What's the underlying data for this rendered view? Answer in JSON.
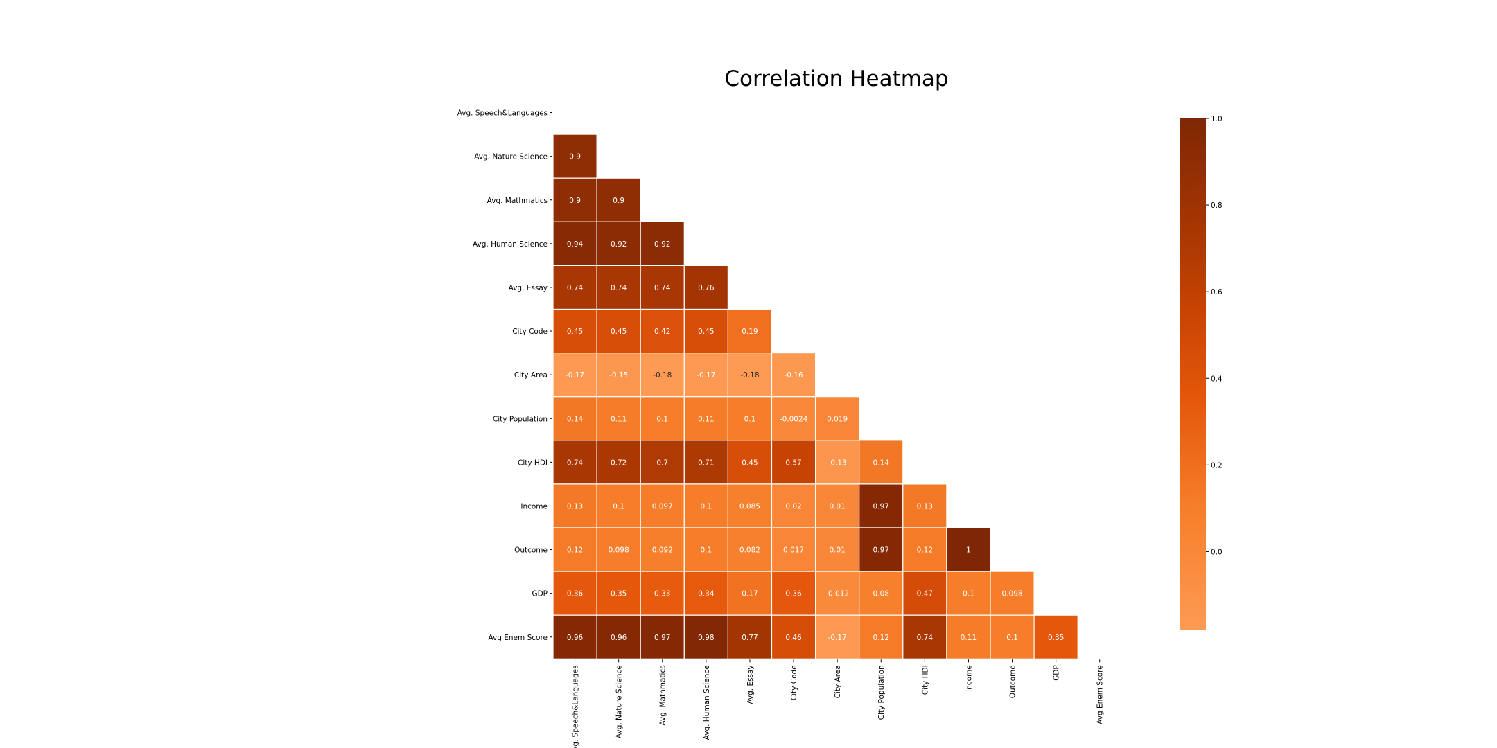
{
  "chart_data": {
    "type": "heatmap",
    "title": "Correlation Heatmap",
    "labels": [
      "Avg. Speech&Languages",
      "Avg. Nature Science",
      "Avg. Mathmatics",
      "Avg. Human Science",
      "Avg. Essay",
      "City Code",
      "City Area",
      "City Population",
      "City HDI",
      "Income",
      "Outcome",
      "GDP",
      "Avg Enem Score"
    ],
    "mask": "upper-triangle-and-diagonal",
    "values": [
      [],
      [
        0.9
      ],
      [
        0.9,
        0.9
      ],
      [
        0.94,
        0.92,
        0.92
      ],
      [
        0.74,
        0.74,
        0.74,
        0.76
      ],
      [
        0.45,
        0.45,
        0.42,
        0.45,
        0.19
      ],
      [
        -0.17,
        -0.15,
        -0.18,
        -0.17,
        -0.18,
        -0.16
      ],
      [
        0.14,
        0.11,
        0.1,
        0.11,
        0.1,
        -0.0024,
        0.019
      ],
      [
        0.74,
        0.72,
        0.7,
        0.71,
        0.45,
        0.57,
        -0.13,
        0.14
      ],
      [
        0.13,
        0.1,
        0.097,
        0.1,
        0.085,
        0.02,
        0.01,
        0.97,
        0.13
      ],
      [
        0.12,
        0.098,
        0.092,
        0.1,
        0.082,
        0.017,
        0.01,
        0.97,
        0.12,
        1
      ],
      [
        0.36,
        0.35,
        0.33,
        0.34,
        0.17,
        0.36,
        -0.012,
        0.08,
        0.47,
        0.1,
        0.098
      ],
      [
        0.96,
        0.96,
        0.97,
        0.98,
        0.77,
        0.46,
        -0.17,
        0.12,
        0.74,
        0.11,
        0.1,
        0.35
      ]
    ],
    "value_labels": [
      [],
      [
        "0.9"
      ],
      [
        "0.9",
        "0.9"
      ],
      [
        "0.94",
        "0.92",
        "0.92"
      ],
      [
        "0.74",
        "0.74",
        "0.74",
        "0.76"
      ],
      [
        "0.45",
        "0.45",
        "0.42",
        "0.45",
        "0.19"
      ],
      [
        "-0.17",
        "-0.15",
        "-0.18",
        "-0.17",
        "-0.18",
        "-0.16"
      ],
      [
        "0.14",
        "0.11",
        "0.1",
        "0.11",
        "0.1",
        "-0.0024",
        "0.019"
      ],
      [
        "0.74",
        "0.72",
        "0.7",
        "0.71",
        "0.45",
        "0.57",
        "-0.13",
        "0.14"
      ],
      [
        "0.13",
        "0.1",
        "0.097",
        "0.1",
        "0.085",
        "0.02",
        "0.01",
        "0.97",
        "0.13"
      ],
      [
        "0.12",
        "0.098",
        "0.092",
        "0.1",
        "0.082",
        "0.017",
        "0.01",
        "0.97",
        "0.12",
        "1"
      ],
      [
        "0.36",
        "0.35",
        "0.33",
        "0.34",
        "0.17",
        "0.36",
        "-0.012",
        "0.08",
        "0.47",
        "0.1",
        "0.098"
      ],
      [
        "0.96",
        "0.96",
        "0.97",
        "0.98",
        "0.77",
        "0.46",
        "-0.17",
        "0.12",
        "0.74",
        "0.11",
        "0.1",
        "0.35"
      ]
    ],
    "colormap": {
      "name": "Oranges",
      "vmin": -0.18,
      "vmax": 1.0,
      "stops": [
        {
          "value": -0.18,
          "color": "#fd9a54"
        },
        {
          "value": 0.1,
          "color": "#f67e2a"
        },
        {
          "value": 0.35,
          "color": "#e5580c"
        },
        {
          "value": 0.55,
          "color": "#c94403"
        },
        {
          "value": 0.75,
          "color": "#a63603"
        },
        {
          "value": 1.0,
          "color": "#7f2704"
        }
      ]
    },
    "colorbar": {
      "ticks": [
        0.0,
        0.2,
        0.4,
        0.6,
        0.8,
        1.0
      ],
      "tick_labels": [
        "0.0",
        "0.2",
        "0.4",
        "0.6",
        "0.8",
        "1.0"
      ]
    },
    "grid_line_color": "#ffffff",
    "annotation_colors": {
      "on_dark": "#ffffff",
      "on_light": "#262626"
    }
  }
}
